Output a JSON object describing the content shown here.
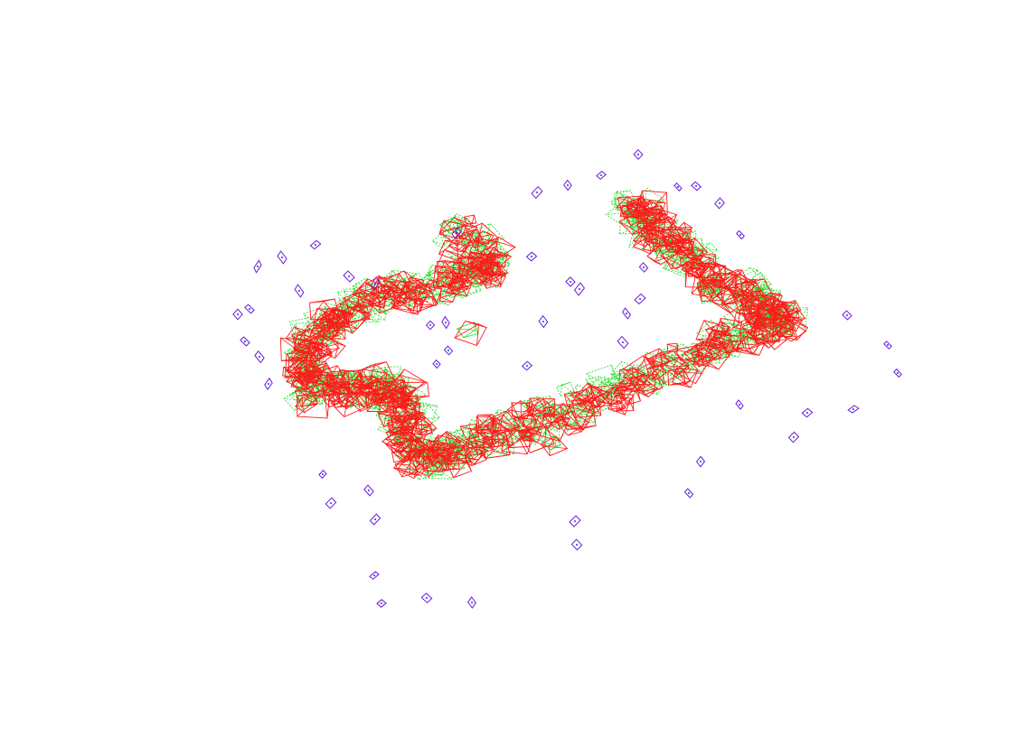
{
  "scene": {
    "background": "#ffffff",
    "colors": {
      "trajectory_camera": "#ff1a1a",
      "trajectory_estimate": "#33dd33",
      "landmark_marker": "#6a1bd6",
      "landmark_center": "#2233ff"
    },
    "icons": {
      "camera_pose": "camera-frustum-icon",
      "landmark": "diamond-marker-icon"
    }
  }
}
